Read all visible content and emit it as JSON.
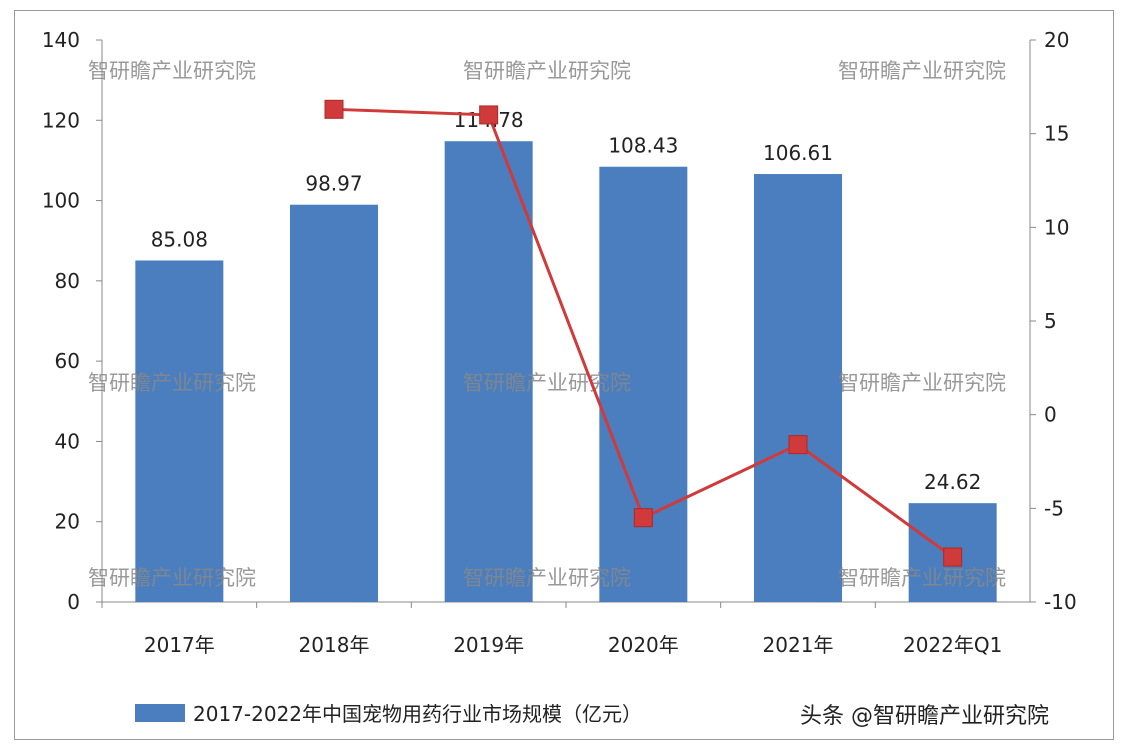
{
  "chart_data": {
    "type": "bar+line",
    "categories": [
      "2017年",
      "2018年",
      "2019年",
      "2020年",
      "2021年",
      "2022年Q1"
    ],
    "series": [
      {
        "name": "2017-2022年中国宠物用药行业市场规模（亿元）",
        "type": "bar",
        "axis": "left",
        "color": "#4a7ebf",
        "values": [
          85.08,
          98.97,
          114.78,
          108.43,
          106.61,
          24.62
        ],
        "labels": [
          "85.08",
          "98.97",
          "114.78",
          "108.43",
          "106.61",
          "24.62"
        ]
      },
      {
        "type": "line",
        "axis": "right",
        "color": "#d03a3a",
        "values": [
          null,
          16.3,
          16.0,
          -5.5,
          -1.6,
          -7.6
        ]
      }
    ],
    "left_axis": {
      "range": [
        0,
        140
      ],
      "ticks": [
        "0",
        "20",
        "40",
        "60",
        "80",
        "100",
        "120",
        "140"
      ]
    },
    "right_axis": {
      "range": [
        -10,
        20
      ],
      "ticks": [
        "-10",
        "-5",
        "0",
        "5",
        "10",
        "15",
        "20"
      ]
    },
    "grid": false,
    "legend": "bottom"
  },
  "watermark": "智研瞻产业研究院",
  "footer_watermark": "头条 @智研瞻产业研究院"
}
